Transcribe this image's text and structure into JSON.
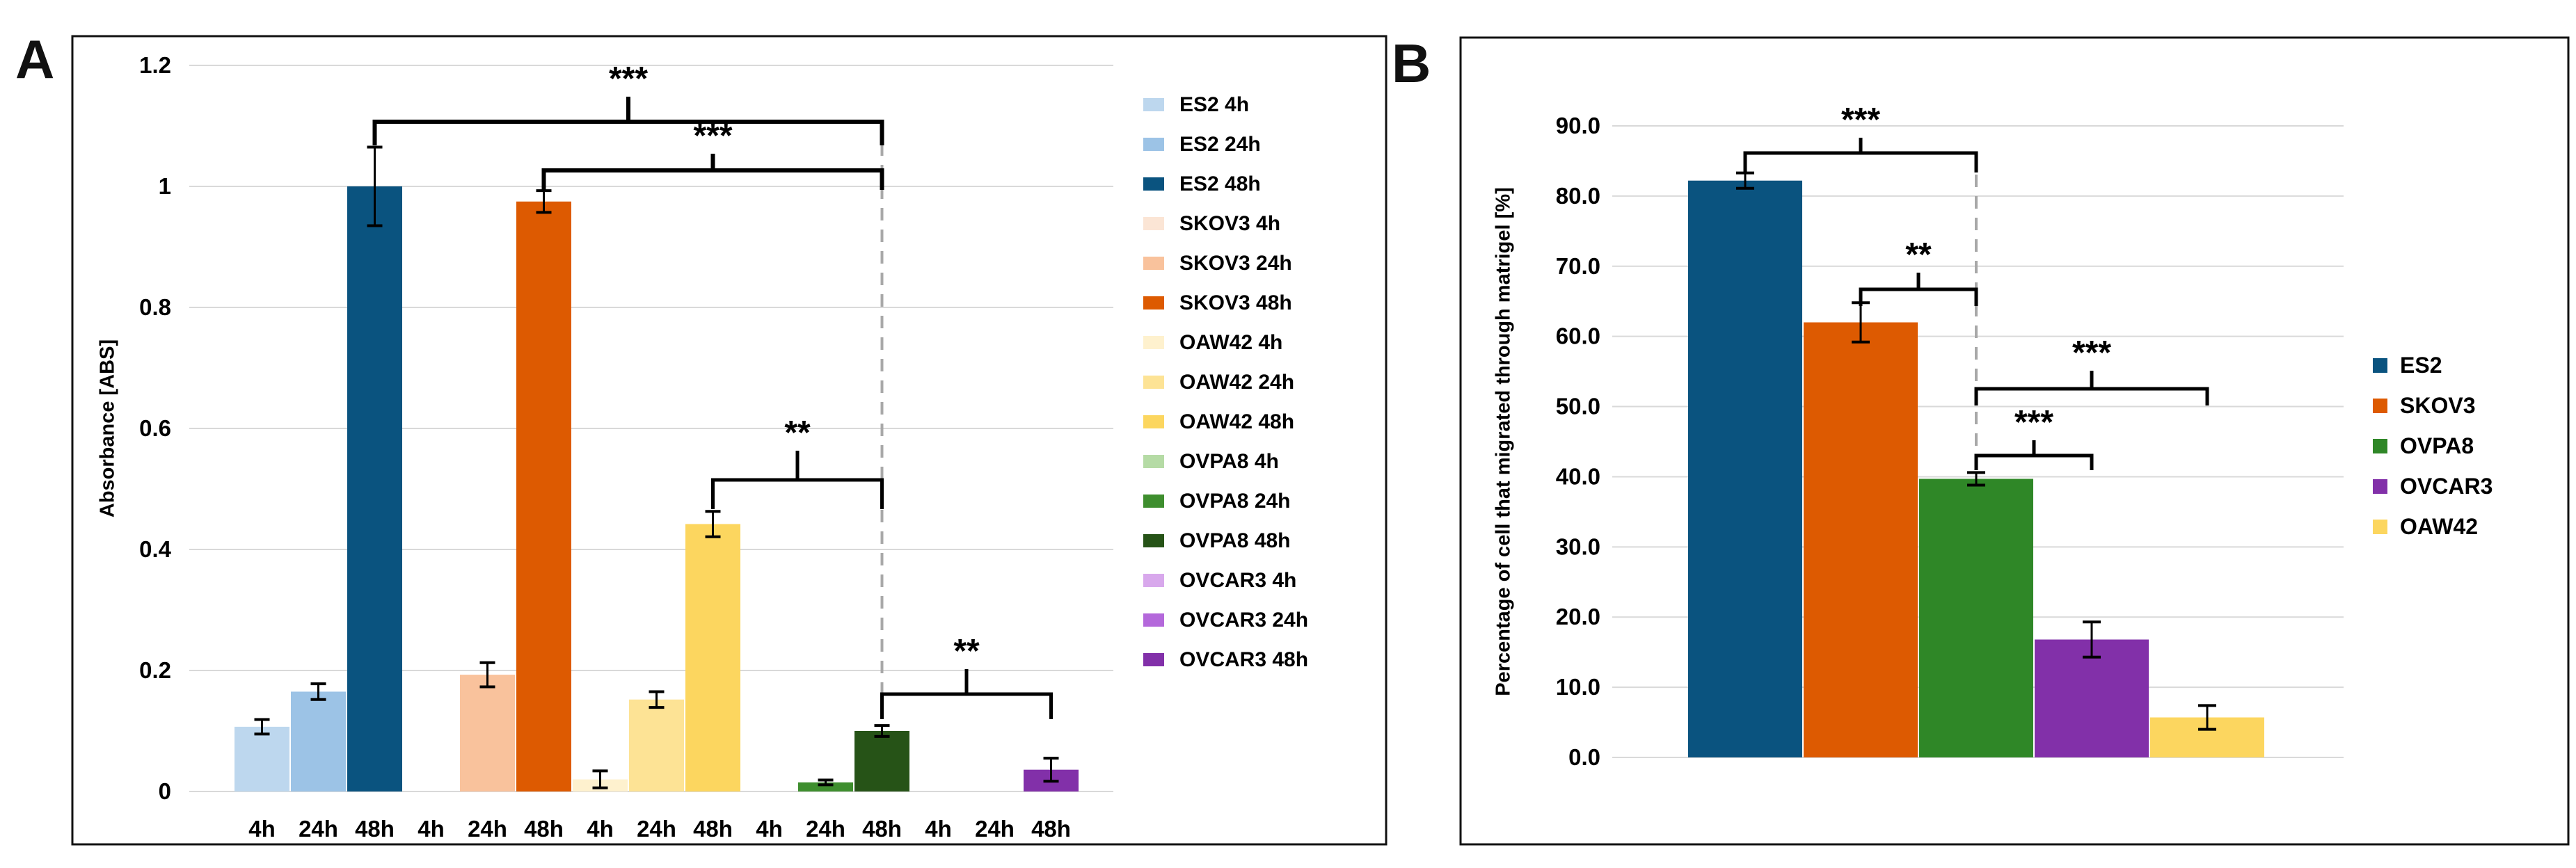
{
  "page": {
    "background": "#ffffff"
  },
  "panels": [
    {
      "label": "A"
    },
    {
      "label": "B"
    }
  ],
  "chart_data": [
    {
      "id": "A",
      "type": "bar",
      "title": "",
      "xlabel": "",
      "ylabel": "Absorbance [ABS]",
      "ylim": [
        0,
        1.2
      ],
      "ytick_labels": [
        "0",
        "0.2",
        "0.4",
        "0.6",
        "0.8",
        "1",
        "1.2"
      ],
      "ytick_values": [
        0,
        0.2,
        0.4,
        0.6,
        0.8,
        1,
        1.2
      ],
      "grid": true,
      "legend_position": "right",
      "groups": [
        "ES2",
        "SKOV3",
        "OAW42",
        "OVPA8",
        "OVCAR3"
      ],
      "timepoints": [
        "4h",
        "24h",
        "48h"
      ],
      "xtick_labels": [
        "4h",
        "24h",
        "48h",
        "4h",
        "24h",
        "48h",
        "4h",
        "24h",
        "48h",
        "4h",
        "24h",
        "48h",
        "4h",
        "24h",
        "48h"
      ],
      "series": [
        {
          "name": "ES2 4h",
          "value": 0.107,
          "error": 0.012,
          "color": "#BDD7EE"
        },
        {
          "name": "ES2 24h",
          "value": 0.165,
          "error": 0.013,
          "color": "#9CC3E6"
        },
        {
          "name": "ES2 48h",
          "value": 1.0,
          "error": 0.065,
          "color": "#0A537F"
        },
        {
          "name": "SKOV3 4h",
          "value": 0,
          "error": 0,
          "color": "#FBE5D5"
        },
        {
          "name": "SKOV3 24h",
          "value": 0.193,
          "error": 0.02,
          "color": "#F9C29C"
        },
        {
          "name": "SKOV3 48h",
          "value": 0.975,
          "error": 0.018,
          "color": "#DD5A01"
        },
        {
          "name": "OAW42 4h",
          "value": 0.02,
          "error": 0.014,
          "color": "#FEF1CE"
        },
        {
          "name": "OAW42 24h",
          "value": 0.152,
          "error": 0.013,
          "color": "#FDE395"
        },
        {
          "name": "OAW42 48h",
          "value": 0.442,
          "error": 0.021,
          "color": "#FCD65F"
        },
        {
          "name": "OVPA8 4h",
          "value": 0,
          "error": 0,
          "color": "#B5DBA5"
        },
        {
          "name": "OVPA8 24h",
          "value": 0.015,
          "error": 0.004,
          "color": "#3E8E2E"
        },
        {
          "name": "OVPA8 48h",
          "value": 0.1,
          "error": 0.009,
          "color": "#265317"
        },
        {
          "name": "OVCAR3 4h",
          "value": 0,
          "error": 0,
          "color": "#D8A8EC"
        },
        {
          "name": "OVCAR3 24h",
          "value": 0,
          "error": 0,
          "color": "#B468DB"
        },
        {
          "name": "OVCAR3 48h",
          "value": 0.036,
          "error": 0.019,
          "color": "#8230A9"
        }
      ],
      "significance": [
        {
          "label": "***",
          "between": [
            "ES2 48h",
            "OVPA8 48h"
          ],
          "i1": 2,
          "i2": 11
        },
        {
          "label": "***",
          "between": [
            "SKOV3 48h",
            "OVPA8 48h"
          ],
          "i1": 5,
          "i2": 11
        },
        {
          "label": "**",
          "between": [
            "OAW42 48h",
            "OVPA8 48h"
          ],
          "i1": 8,
          "i2": 11
        },
        {
          "label": "**",
          "between": [
            "OVPA8 48h",
            "OVCAR3 48h"
          ],
          "i1": 11,
          "i2": 14
        }
      ],
      "reference_line": {
        "style": "dashed",
        "at": "OVPA8 48h"
      }
    },
    {
      "id": "B",
      "type": "bar",
      "title": "",
      "xlabel": "",
      "ylabel": "Percentage of cell that migrated through matrigel [%]",
      "ylim": [
        0,
        90
      ],
      "ytick_labels": [
        "0.0",
        "10.0",
        "20.0",
        "30.0",
        "40.0",
        "50.0",
        "60.0",
        "70.0",
        "80.0",
        "90.0"
      ],
      "ytick_values": [
        0,
        10,
        20,
        30,
        40,
        50,
        60,
        70,
        80,
        90
      ],
      "grid": true,
      "legend_position": "right",
      "categories": [
        "ES2",
        "SKOV3",
        "OVPA8",
        "OVCAR3",
        "OAW42"
      ],
      "values": [
        82.2,
        62.0,
        39.7,
        16.8,
        5.7
      ],
      "errors": [
        1.1,
        2.8,
        0.9,
        2.5,
        1.7
      ],
      "colors": [
        "#0A537F",
        "#DD5A01",
        "#2F8727",
        "#8230A9",
        "#FCD65F"
      ],
      "significance": [
        {
          "label": "***",
          "between": [
            "ES2",
            "OVPA8"
          ],
          "i1": 0,
          "i2": 2
        },
        {
          "label": "**",
          "between": [
            "SKOV3",
            "OVPA8"
          ],
          "i1": 1,
          "i2": 2
        },
        {
          "label": "***",
          "between": [
            "OVPA8",
            "OAW42"
          ],
          "i1": 2,
          "i2": 4
        },
        {
          "label": "***",
          "between": [
            "OVPA8",
            "OVCAR3"
          ],
          "i1": 2,
          "i2": 3
        }
      ],
      "reference_line": {
        "style": "dashed",
        "at": "OVPA8"
      }
    }
  ]
}
